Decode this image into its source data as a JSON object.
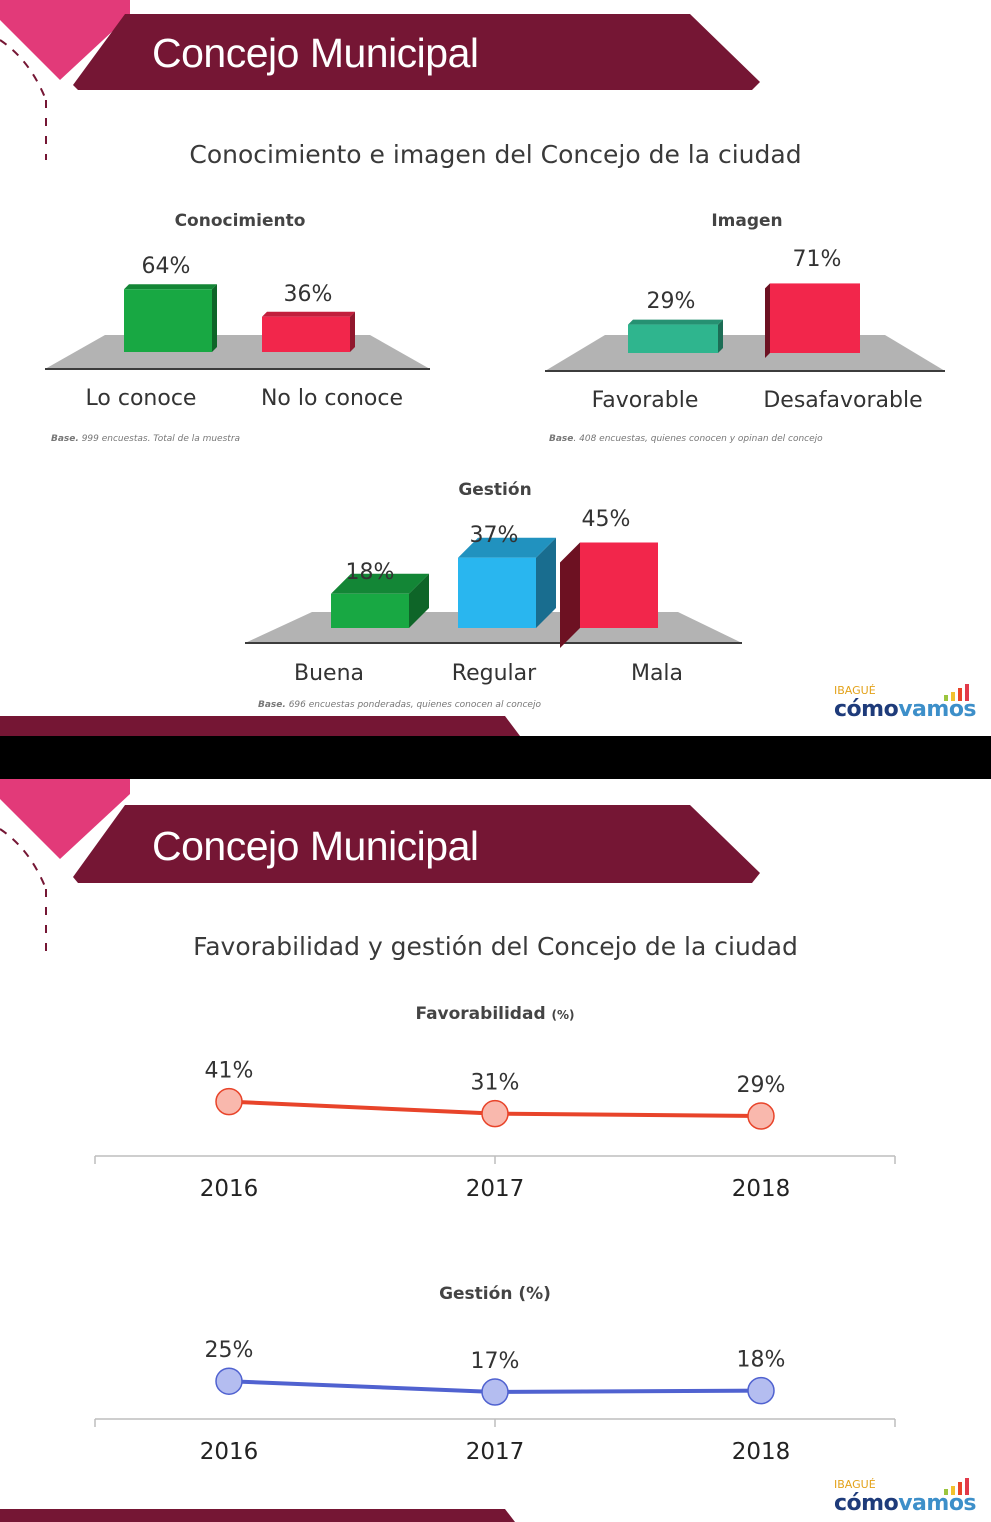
{
  "slide1": {
    "header": "Concejo Municipal",
    "title": "Conocimiento e imagen del Concejo de la ciudad",
    "logo": {
      "top": "IBAGUÉ",
      "brand_a": "cómo",
      "brand_b": "vamos"
    }
  },
  "slide2": {
    "header": "Concejo Municipal",
    "title": "Favorabilidad y gestión del Concejo de la ciudad",
    "logo": {
      "top": "IBAGUÉ",
      "brand_a": "cómo",
      "brand_b": "vamos"
    }
  },
  "colors": {
    "header_bg": "#751634",
    "accent_pink": "#e23a79",
    "green": "#18a843",
    "red": "#f2264b",
    "teal": "#2fb58e",
    "blue": "#29b6ef",
    "line_orange": "#e8442a",
    "line_blue": "#5062d0"
  },
  "chart_data": [
    {
      "type": "bar",
      "title": "Conocimiento",
      "categories": [
        "Lo conoce",
        "No lo conoce"
      ],
      "values": [
        64,
        36
      ],
      "value_labels": [
        "64%",
        "36%"
      ],
      "colors": [
        "#18a843",
        "#f2264b"
      ],
      "note_bold": "Base.",
      "note": " 999 encuestas.  Total de la muestra"
    },
    {
      "type": "bar",
      "title": "Imagen",
      "categories": [
        "Favorable",
        "Desafavorable"
      ],
      "values": [
        29,
        71
      ],
      "value_labels": [
        "29%",
        "71%"
      ],
      "colors": [
        "#2fb58e",
        "#f2264b"
      ],
      "note_bold": "Base",
      "note": ". 408 encuestas, quienes conocen y opinan del concejo"
    },
    {
      "type": "bar",
      "title": "Gestión",
      "categories": [
        "Buena",
        "Regular",
        "Mala"
      ],
      "values": [
        18,
        37,
        45
      ],
      "value_labels": [
        "18%",
        "37%",
        "45%"
      ],
      "colors": [
        "#18a843",
        "#29b6ef",
        "#f2264b"
      ],
      "note_bold": "Base.",
      "note": "  696 encuestas ponderadas, quienes conocen al concejo"
    },
    {
      "type": "line",
      "title": "Favorabilidad",
      "title_unit": "(%)",
      "x": [
        "2016",
        "2017",
        "2018"
      ],
      "values": [
        41,
        31,
        29
      ],
      "value_labels": [
        "41%",
        "31%",
        "29%"
      ],
      "color": "#e8442a",
      "marker_color": "#f9b8ad"
    },
    {
      "type": "line",
      "title": "Gestión (%)",
      "x": [
        "2016",
        "2017",
        "2018"
      ],
      "values": [
        25,
        17,
        18
      ],
      "value_labels": [
        "25%",
        "17%",
        "18%"
      ],
      "color": "#5062d0",
      "marker_color": "#b4bdf0"
    }
  ]
}
